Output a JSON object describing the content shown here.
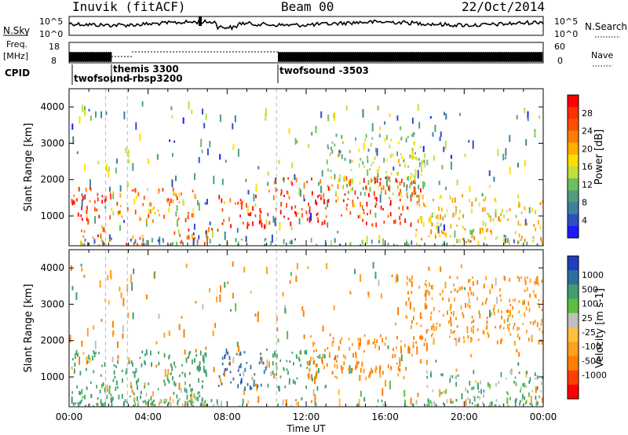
{
  "header": {
    "station": "Inuvik (fitACF)",
    "beam": "Beam 00",
    "date": "22/Oct/2014"
  },
  "top_panels": {
    "nsky_label": "N.Sky",
    "nsky_ticks": [
      "10^5",
      "10^0"
    ],
    "nsearch_label": "N.Search",
    "nsearch_ticks": [
      "10^5",
      "10^0"
    ],
    "freq_label": "Freq.",
    "freq_unit": "[MHz]",
    "freq_ticks": [
      "18",
      "8"
    ],
    "nave_label": "Nave",
    "nave_ticks": [
      "60",
      "0"
    ],
    "cpid_label": "CPID",
    "cpid_segments": [
      {
        "name": "twofsound",
        "start_h": 0.0,
        "end_h": 1.85
      },
      {
        "name": "themis 3300",
        "start_h": 1.85,
        "end_h": 2.95
      },
      {
        "name": "-rbsp3200",
        "start_h": 2.95,
        "end_h": 10.5
      },
      {
        "name": "twofsound -3503",
        "start_h": 10.5,
        "end_h": 24.0
      }
    ]
  },
  "chart_data": [
    {
      "type": "heatmap",
      "title": "",
      "xlabel": "",
      "ylabel": "Slant Range [km]",
      "xlim": [
        0,
        24
      ],
      "ylim": [
        180,
        4500
      ],
      "x_ticks": [
        "00:00",
        "04:00",
        "08:00",
        "12:00",
        "16:00",
        "20:00",
        "00:00"
      ],
      "y_ticks": [
        1000,
        2000,
        3000,
        4000
      ],
      "colorbar": {
        "label": "Power [dB]",
        "ticks": [
          4,
          8,
          12,
          16,
          20,
          24,
          28
        ],
        "colors": [
          "#1a1aff",
          "#2f4fbf",
          "#3f7f9f",
          "#4f9f7f",
          "#6fbf5f",
          "#bfdf3f",
          "#ffdf00",
          "#ffaf00",
          "#ff7f00",
          "#ff4f00",
          "#ff2f00",
          "#ff0000"
        ]
      },
      "echo_regions": [
        {
          "t0": 0.1,
          "t1": 2.0,
          "r0": 600,
          "r1": 1800,
          "value": 26
        },
        {
          "t0": 0.2,
          "t1": 4.2,
          "r0": 200,
          "r1": 500,
          "value": 24
        },
        {
          "t0": 2.0,
          "t1": 6.5,
          "r0": 900,
          "r1": 1800,
          "value": 22
        },
        {
          "t0": 5.0,
          "t1": 7.5,
          "r0": 250,
          "r1": 700,
          "value": 25
        },
        {
          "t0": 7.5,
          "t1": 10.0,
          "r0": 750,
          "r1": 1600,
          "value": 27
        },
        {
          "t0": 10.0,
          "t1": 17.8,
          "r0": 800,
          "r1": 2100,
          "value": 26
        },
        {
          "t0": 13.0,
          "t1": 18.0,
          "r0": 1500,
          "r1": 3300,
          "value": 14
        },
        {
          "t0": 17.5,
          "t1": 24.0,
          "r0": 300,
          "r1": 1600,
          "value": 18
        },
        {
          "t0": 0.0,
          "t1": 24.0,
          "r0": 180,
          "r1": 400,
          "value": 10
        }
      ]
    },
    {
      "type": "heatmap",
      "title": "",
      "xlabel": "Time UT",
      "ylabel": "Slant Range [km]",
      "xlim": [
        0,
        24
      ],
      "ylim": [
        180,
        4500
      ],
      "x_ticks": [
        "00:00",
        "04:00",
        "08:00",
        "12:00",
        "16:00",
        "20:00",
        "00:00"
      ],
      "y_ticks": [
        1000,
        2000,
        3000,
        4000
      ],
      "colorbar": {
        "label": "Velocity [m s-1]",
        "ticks": [
          1000,
          500,
          100,
          25,
          -25,
          -100,
          -500,
          -1000
        ],
        "colors": [
          "#1f3fbf",
          "#2f6f9f",
          "#3f9f6f",
          "#5fbf3f",
          "#bfbfbf",
          "#ffbf3f",
          "#ff9f1f",
          "#ff7f00",
          "#ff3f00",
          "#ff0000"
        ]
      },
      "echo_regions": [
        {
          "t0": 0.1,
          "t1": 7.0,
          "r0": 200,
          "r1": 1800,
          "value": 150
        },
        {
          "t0": 3.0,
          "t1": 6.5,
          "r0": 200,
          "r1": 700,
          "value": 0
        },
        {
          "t0": 7.5,
          "t1": 10.0,
          "r0": 700,
          "r1": 1800,
          "value": 600
        },
        {
          "t0": 10.0,
          "t1": 13.0,
          "r0": 700,
          "r1": 1800,
          "value": 150
        },
        {
          "t0": 12.0,
          "t1": 18.0,
          "r0": 1000,
          "r1": 2200,
          "value": -300
        },
        {
          "t0": 17.0,
          "t1": 24.0,
          "r0": 2000,
          "r1": 3800,
          "value": -300
        },
        {
          "t0": 18.0,
          "t1": 24.0,
          "r0": 250,
          "r1": 1200,
          "value": 80
        },
        {
          "t0": 0.0,
          "t1": 24.0,
          "r0": 180,
          "r1": 400,
          "value": 60
        }
      ]
    }
  ]
}
